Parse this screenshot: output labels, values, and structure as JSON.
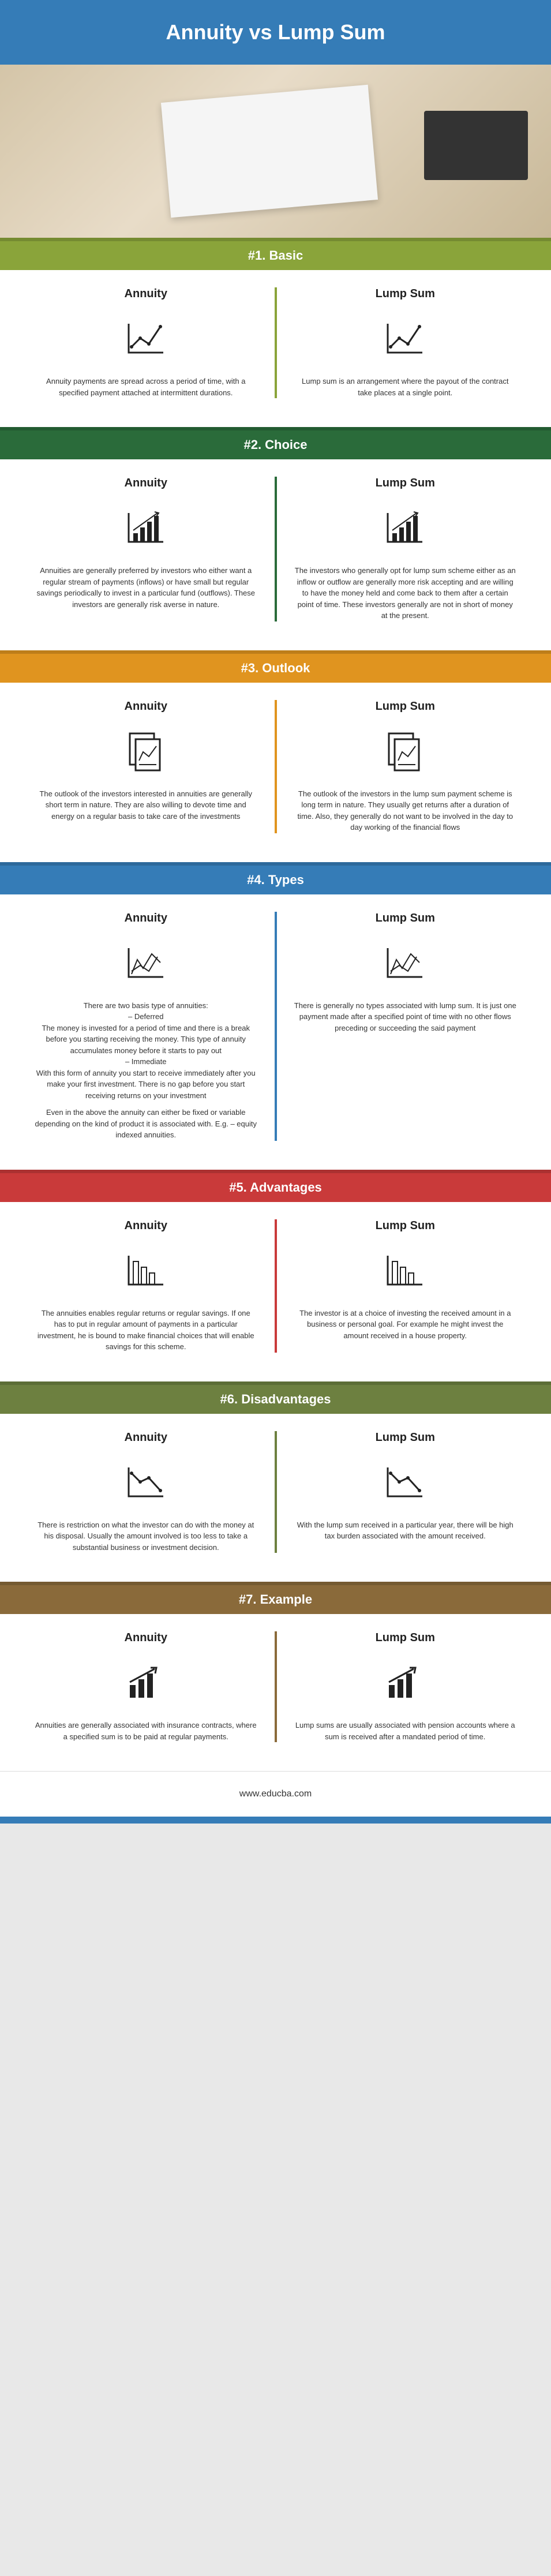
{
  "title": "Annuity vs Lump Sum",
  "column_labels": {
    "left": "Annuity",
    "right": "Lump Sum"
  },
  "sections": [
    {
      "id": "basic",
      "heading": "#1. Basic",
      "bar_color": "#8aa43a",
      "divider_color": "#8aa43a",
      "icon_left": "line-chart",
      "icon_right": "line-chart",
      "text_left": "Annuity payments are spread across a period of time, with a specified payment attached at intermittent durations.",
      "text_right": "Lump sum is an arrangement where the payout of the contract take places at a single point."
    },
    {
      "id": "choice",
      "heading": "#2. Choice",
      "bar_color": "#2a6b3a",
      "divider_color": "#2a6b3a",
      "icon_left": "bar-chart-up",
      "icon_right": "bar-chart-up",
      "text_left": "Annuities are generally preferred by investors who either want a regular stream of payments (inflows) or have small but regular savings periodically to invest in a particular fund (outflows). These investors are generally risk averse in nature.",
      "text_right": "The investors who generally opt for lump sum scheme either as an inflow or outflow are generally more risk accepting and are willing to have the money held and come back to them after a certain point of time. These investors generally are not in short of money at the present."
    },
    {
      "id": "outlook",
      "heading": "#3. Outlook",
      "bar_color": "#e0941f",
      "divider_color": "#e0941f",
      "icon_left": "document-chart",
      "icon_right": "document-chart",
      "text_left": "The outlook of the investors interested in annuities are generally short term in nature. They are also willing to devote time and energy on a regular basis to take care of the investments",
      "text_right": "The outlook of the investors in the lump sum payment scheme is long term in nature. They usually get returns after a duration of time. Also, they generally do not want to be involved in the day to day working of the financial flows"
    },
    {
      "id": "types",
      "heading": "#4. Types",
      "bar_color": "#357cb7",
      "divider_color": "#357cb7",
      "icon_left": "multi-line-chart",
      "icon_right": "multi-line-chart",
      "text_left": "There are two basis type of annuities:\n– Deferred\nThe money is invested for a period of time and there is a break before you starting receiving the money. This type of annuity accumulates money before it starts to pay out\n– Immediate\nWith this form of annuity you start to receive immediately after you make your first investment. There is no gap before you start receiving returns on your investment",
      "text_left_extra": "Even in the above the annuity can either be fixed or variable depending on the kind of product it is associated with. E.g. – equity indexed annuities.",
      "text_right": "There is generally no types associated with lump sum. It is just one payment made after a specified point of time with no other flows preceding or succeeding the said payment"
    },
    {
      "id": "advantages",
      "heading": "#5. Advantages",
      "bar_color": "#c93a3a",
      "divider_color": "#c93a3a",
      "icon_left": "bar-chart-down",
      "icon_right": "bar-chart-down",
      "text_left": "The annuities enables regular returns or regular savings. If one has to put in regular amount of payments in a particular investment, he is bound to make financial choices that will enable savings for this scheme.",
      "text_right": "The investor is at a choice of investing the received amount in a business or personal goal. For example he might invest the amount received in a house property."
    },
    {
      "id": "disadvantages",
      "heading": "#6. Disadvantages",
      "bar_color": "#6d8040",
      "divider_color": "#6d8040",
      "icon_left": "line-chart-down",
      "icon_right": "line-chart-down",
      "text_left": "There is restriction on what the investor can do with the money at his disposal. Usually the amount involved is too less to take a substantial business or investment decision.",
      "text_right": "With the lump sum received in a particular year, there will be high tax burden associated with the amount received."
    },
    {
      "id": "example",
      "heading": "#7. Example",
      "bar_color": "#8a6a3a",
      "divider_color": "#8a6a3a",
      "icon_left": "bar-chart-arrow",
      "icon_right": "bar-chart-arrow",
      "text_left": "Annuities are generally associated with insurance contracts, where a specified sum is to be paid at regular payments.",
      "text_right": "Lump sums are usually associated with pension accounts where a sum is received after a mandated period of time."
    }
  ],
  "footer": "www.educba.com",
  "footer_band_color": "#357cb7"
}
